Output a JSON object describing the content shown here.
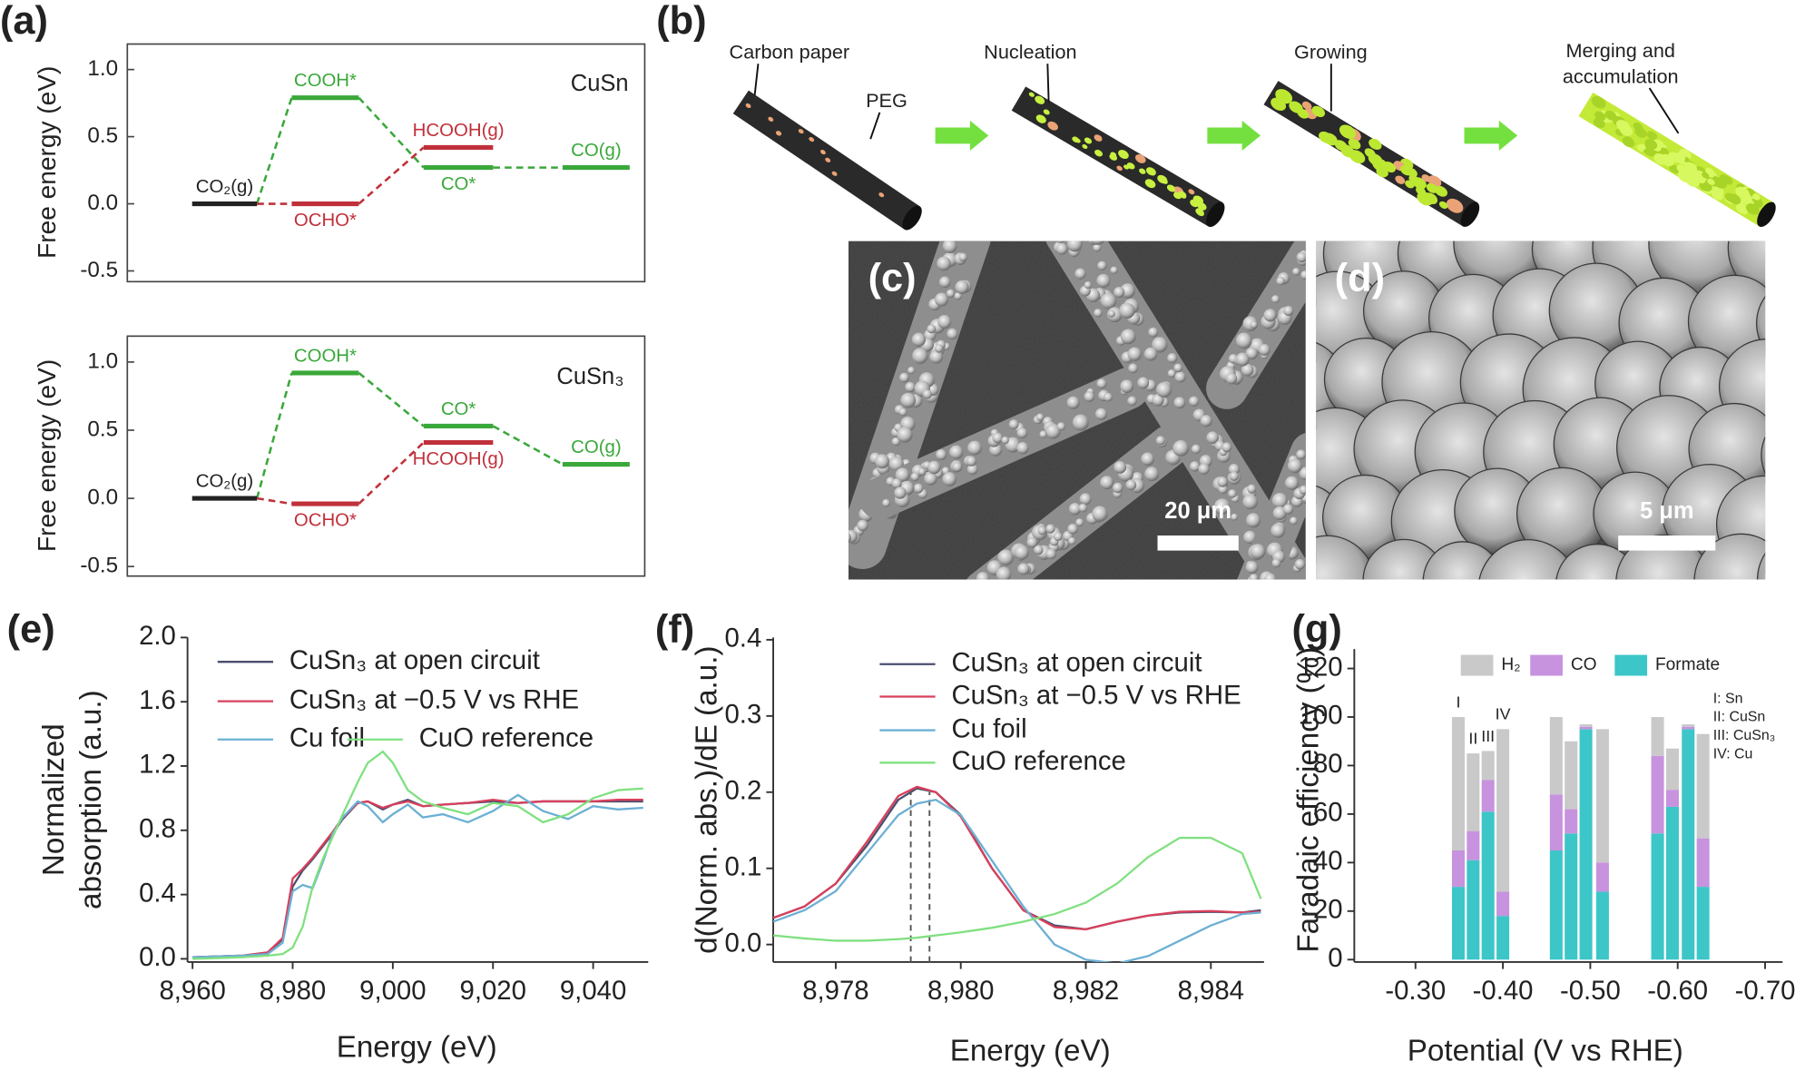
{
  "panel_labels": [
    "(a)",
    "(b)",
    "(c)",
    "(d)",
    "(e)",
    "(f)",
    "(g)"
  ],
  "schematic": {
    "labels": [
      "Carbon paper",
      "PEG",
      "Nucleation",
      "Growing"
    ],
    "final_label": [
      "Merging and",
      "accumulation"
    ]
  },
  "micrographs": [
    {
      "scale_bar": "20 μm"
    },
    {
      "scale_bar": "5 μm"
    }
  ],
  "chart_data": [
    {
      "type": "energy_diagram",
      "ylabel": "Free energy (eV)",
      "annotation": "CuSn",
      "ylim": [
        -0.58,
        1.19
      ],
      "yticks": [
        -0.5,
        {
          "value": 0,
          "label": "0.0"
        },
        0.5,
        {
          "value": 1,
          "label": "1.0"
        }
      ],
      "start": {
        "label": "CO₂(g)",
        "value": 0,
        "color": "#222222"
      },
      "series": [
        {
          "color": "#3aa83a",
          "labels": [
            "COOH*",
            "CO*",
            "CO(g)"
          ],
          "values": [
            0.79,
            0.27,
            0.27
          ]
        },
        {
          "color": "#c0303a",
          "labels": [
            "OCHO*",
            "HCOOH(g)"
          ],
          "values": [
            0,
            0.42
          ]
        }
      ]
    },
    {
      "type": "energy_diagram",
      "ylabel": "Free energy (eV)",
      "annotation": "CuSn₃",
      "ylim": [
        -0.57,
        1.19
      ],
      "yticks": [
        -0.5,
        {
          "value": 0,
          "label": "0.0"
        },
        0.5,
        {
          "value": 1,
          "label": "1.0"
        }
      ],
      "start": {
        "label": "CO₂(g)",
        "value": 0,
        "color": "#222222"
      },
      "series": [
        {
          "color": "#3aa83a",
          "labels": [
            "COOH*",
            "CO*",
            "CO(g)"
          ],
          "values": [
            0.92,
            0.53,
            0.25
          ]
        },
        {
          "color": "#c0303a",
          "labels": [
            "OCHO*",
            "HCOOH(g)"
          ],
          "values": [
            -0.04,
            0.41
          ]
        }
      ]
    },
    {
      "type": "line",
      "xlabel": "Energy (eV)",
      "ylabel": [
        "Normalized",
        "absorption (a.u.)"
      ],
      "xlim": [
        8959,
        9051
      ],
      "ylim": [
        -0.02,
        2.0
      ],
      "xticks": [
        {
          "value": 8960,
          "label": "8,960"
        },
        {
          "value": 8980,
          "label": "8,980"
        },
        {
          "value": 9000,
          "label": "9,000"
        },
        {
          "value": 9020,
          "label": "9,020"
        },
        {
          "value": 9040,
          "label": "9,040"
        }
      ],
      "yticks": [
        {
          "value": 0,
          "label": "0.0"
        },
        0.4,
        0.8,
        1.2,
        1.6,
        {
          "value": 2,
          "label": "2.0"
        }
      ],
      "x": [
        8960,
        8970,
        8975,
        8978,
        8980,
        8982,
        8984,
        8986,
        8988,
        8990,
        8993,
        8995,
        8998,
        9000,
        9003,
        9006,
        9010,
        9015,
        9020,
        9025,
        9030,
        9035,
        9040,
        9045,
        9050
      ],
      "series": [
        {
          "name": "CuSn₃ at open circuit",
          "color": "#4a4e6e",
          "values": [
            0.01,
            0.02,
            0.04,
            0.12,
            0.45,
            0.55,
            0.62,
            0.7,
            0.78,
            0.87,
            0.97,
            0.98,
            0.93,
            0.96,
            0.99,
            0.95,
            0.96,
            0.97,
            0.98,
            0.97,
            0.98,
            0.98,
            0.98,
            0.98,
            0.98
          ]
        },
        {
          "name": "CuSn₃ at −0.5 V vs RHE",
          "color": "#d8405c",
          "values": [
            0.01,
            0.02,
            0.04,
            0.13,
            0.5,
            0.56,
            0.63,
            0.71,
            0.79,
            0.88,
            0.97,
            0.98,
            0.94,
            0.96,
            0.98,
            0.95,
            0.96,
            0.97,
            0.99,
            0.97,
            0.98,
            0.98,
            0.98,
            0.99,
            0.99
          ]
        },
        {
          "name": "Cu foil",
          "color": "#6cb0d4",
          "values": [
            0.01,
            0.02,
            0.03,
            0.1,
            0.42,
            0.46,
            0.44,
            0.6,
            0.78,
            0.88,
            0.98,
            0.95,
            0.85,
            0.9,
            0.96,
            0.88,
            0.9,
            0.85,
            0.92,
            1.02,
            0.92,
            0.87,
            0.95,
            0.93,
            0.94
          ]
        },
        {
          "name": "CuO reference",
          "color": "#80e080",
          "values": [
            0,
            0.01,
            0.02,
            0.03,
            0.07,
            0.2,
            0.45,
            0.62,
            0.76,
            0.9,
            1.1,
            1.22,
            1.29,
            1.22,
            1.05,
            0.98,
            0.94,
            0.9,
            0.97,
            0.95,
            0.85,
            0.9,
            1.0,
            1.05,
            1.06
          ]
        }
      ]
    },
    {
      "type": "line",
      "xlabel": "Energy (eV)",
      "ylabel": "d(Norm. abs.)/dE (a.u.)",
      "xlim": [
        8977,
        8984.85
      ],
      "ylim": [
        -0.023,
        0.403
      ],
      "xticks": [
        {
          "value": 8978,
          "label": "8,978"
        },
        {
          "value": 8980,
          "label": "8,980"
        },
        {
          "value": 8982,
          "label": "8,982"
        },
        {
          "value": 8984,
          "label": "8,984"
        }
      ],
      "yticks": [
        {
          "value": 0,
          "label": "0.0"
        },
        0.1,
        0.2,
        0.3,
        0.4
      ],
      "vlines": [
        8979.2,
        8979.5
      ],
      "x": [
        8977,
        8977.5,
        8978,
        8978.5,
        8979,
        8979.3,
        8979.6,
        8980,
        8980.5,
        8981,
        8981.5,
        8982,
        8982.5,
        8983,
        8983.5,
        8984,
        8984.5,
        8984.8
      ],
      "series": [
        {
          "name": "CuSn₃ at open circuit",
          "color": "#4a4e6e",
          "values": [
            0.035,
            0.05,
            0.08,
            0.13,
            0.19,
            0.205,
            0.2,
            0.17,
            0.1,
            0.045,
            0.025,
            0.02,
            0.03,
            0.038,
            0.042,
            0.043,
            0.042,
            0.045
          ]
        },
        {
          "name": "CuSn₃ at −0.5 V vs RHE",
          "color": "#d8405c",
          "values": [
            0.035,
            0.05,
            0.08,
            0.135,
            0.195,
            0.207,
            0.2,
            0.168,
            0.1,
            0.045,
            0.023,
            0.02,
            0.03,
            0.038,
            0.043,
            0.044,
            0.042,
            0.043
          ]
        },
        {
          "name": "Cu foil",
          "color": "#6cb0d4",
          "values": [
            0.03,
            0.045,
            0.07,
            0.12,
            0.17,
            0.185,
            0.19,
            0.17,
            0.11,
            0.05,
            0,
            -0.02,
            -0.025,
            -0.015,
            0.005,
            0.025,
            0.04,
            0.042
          ]
        },
        {
          "name": "CuO reference",
          "color": "#80e080",
          "values": [
            0.012,
            0.008,
            0.005,
            0.005,
            0.007,
            0.009,
            0.012,
            0.016,
            0.022,
            0.03,
            0.04,
            0.055,
            0.08,
            0.115,
            0.14,
            0.14,
            0.12,
            0.06
          ]
        }
      ]
    },
    {
      "type": "stacked_bar",
      "xlabel": "Potential (V vs RHE)",
      "ylabel": "Faradaic efficiency (%)",
      "xlim": [
        -0.23,
        -0.72
      ],
      "ylim": [
        -1,
        128
      ],
      "xticks": [
        {
          "value": -0.3,
          "label": "-0.30"
        },
        {
          "value": -0.4,
          "label": "-0.40"
        },
        {
          "value": -0.5,
          "label": "-0.50"
        },
        {
          "value": -0.6,
          "label": "-0.60"
        },
        {
          "value": -0.7,
          "label": "-0.70"
        }
      ],
      "yticks": [
        0,
        20,
        40,
        60,
        80,
        100,
        120
      ],
      "x": [
        -0.349,
        -0.366,
        -0.383,
        -0.4,
        -0.461,
        -0.478,
        -0.495,
        -0.514,
        -0.577,
        -0.594,
        -0.612,
        -0.629
      ],
      "bar_labels": [
        "I",
        "II",
        "III",
        "IV"
      ],
      "notes": [
        "I: Sn",
        "II: CuSn",
        "III: CuSn₃",
        "IV: Cu"
      ],
      "series": [
        {
          "name": "Formate",
          "color": "#3cc6c8",
          "values": [
            30,
            41,
            61,
            18,
            45,
            52,
            95,
            28,
            52,
            63,
            95,
            30
          ]
        },
        {
          "name": "CO",
          "color": "#c792de",
          "values": [
            15,
            12,
            13,
            10,
            23,
            10,
            1,
            12,
            32,
            7,
            1,
            20
          ]
        },
        {
          "name": "H₂",
          "color": "#c9c9c9",
          "values": [
            55,
            32,
            12,
            67,
            32,
            28,
            1,
            55,
            16,
            17,
            1,
            43
          ]
        }
      ]
    }
  ]
}
